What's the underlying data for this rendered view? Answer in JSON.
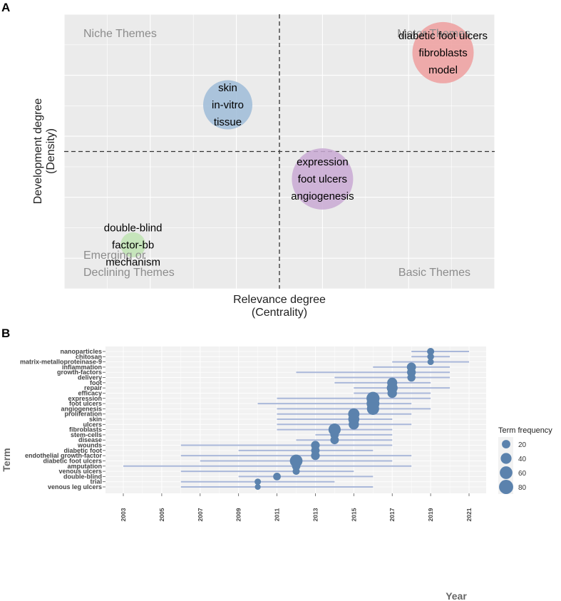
{
  "chart_data": [
    {
      "type": "scatter",
      "panel_label": "A",
      "xlabel": [
        "Relevance degree",
        "(Centrality)"
      ],
      "ylabel": [
        "Development degree",
        "(Density)"
      ],
      "quadrants": {
        "top_left": "Niche Themes",
        "top_right": "Motor Themes",
        "bottom_left": [
          "Emerging or",
          "Declining Themes"
        ],
        "bottom_right": "Basic Themes"
      },
      "xlim": [
        0,
        100
      ],
      "ylim": [
        0,
        100
      ],
      "divider": {
        "x": 50,
        "y": 50
      },
      "clusters": [
        {
          "name": "skin",
          "terms": [
            "skin",
            "in-vitro",
            "tissue"
          ],
          "x": 38,
          "y": 67,
          "size": 3,
          "color": "#9fbcd8"
        },
        {
          "name": "diabetic foot ulcers",
          "terms": [
            "diabetic foot ulcers",
            "fibroblasts",
            "model"
          ],
          "x": 88,
          "y": 86,
          "size": 4,
          "color": "#ef9f9f"
        },
        {
          "name": "expression",
          "terms": [
            "expression",
            "foot ulcers",
            "angiogenesis"
          ],
          "x": 60,
          "y": 40,
          "size": 4,
          "color": "#c9a9d3"
        },
        {
          "name": "double-blind",
          "terms": [
            "double-blind",
            "factor-bb",
            "mechanism"
          ],
          "x": 16,
          "y": 16,
          "size": 1,
          "color": "#bfe4b3"
        }
      ]
    },
    {
      "type": "scatter",
      "panel_label": "B",
      "title": "",
      "xlabel": "Year",
      "ylabel": "Term",
      "xlim": [
        2003,
        2021
      ],
      "x_ticks": [
        "2003",
        "2005",
        "2007",
        "2009",
        "2011",
        "2013",
        "2015",
        "2017",
        "2019",
        "2021"
      ],
      "legend": {
        "title": "Term frequency",
        "items": [
          "20",
          "40",
          "60",
          "80"
        ],
        "values": [
          20,
          40,
          60,
          80
        ]
      },
      "color": "#5b82ad",
      "range_color": "#aab8da",
      "terms": [
        {
          "term": "nanoparticles",
          "start": 2018,
          "end": 2021,
          "year": 2019,
          "freq": 12
        },
        {
          "term": "chitosan",
          "start": 2018,
          "end": 2020,
          "year": 2019,
          "freq": 10
        },
        {
          "term": "matrix-metalloproteinase-9",
          "start": 2017,
          "end": 2021,
          "year": 2019,
          "freq": 8
        },
        {
          "term": "inflammation",
          "start": 2016,
          "end": 2020,
          "year": 2018,
          "freq": 25
        },
        {
          "term": "growth-factors",
          "start": 2012,
          "end": 2020,
          "year": 2018,
          "freq": 22
        },
        {
          "term": "delivery",
          "start": 2014,
          "end": 2020,
          "year": 2018,
          "freq": 18
        },
        {
          "term": "foot",
          "start": 2014,
          "end": 2019,
          "year": 2017,
          "freq": 33
        },
        {
          "term": "repair",
          "start": 2015,
          "end": 2020,
          "year": 2017,
          "freq": 40
        },
        {
          "term": "efficacy",
          "start": 2015,
          "end": 2019,
          "year": 2017,
          "freq": 28
        },
        {
          "term": "expression",
          "start": 2011,
          "end": 2019,
          "year": 2016,
          "freq": 65
        },
        {
          "term": "foot ulcers",
          "start": 2010,
          "end": 2018,
          "year": 2016,
          "freq": 62
        },
        {
          "term": "angiogenesis",
          "start": 2011,
          "end": 2019,
          "year": 2016,
          "freq": 55
        },
        {
          "term": "proliferation",
          "start": 2011,
          "end": 2018,
          "year": 2015,
          "freq": 45
        },
        {
          "term": "skin",
          "start": 2011,
          "end": 2017,
          "year": 2015,
          "freq": 42
        },
        {
          "term": "ulcers",
          "start": 2011,
          "end": 2018,
          "year": 2015,
          "freq": 35
        },
        {
          "term": "fibroblasts",
          "start": 2011,
          "end": 2017,
          "year": 2014,
          "freq": 55
        },
        {
          "term": "stem-cells",
          "start": 2013,
          "end": 2017,
          "year": 2014,
          "freq": 20
        },
        {
          "term": "disease",
          "start": 2012,
          "end": 2017,
          "year": 2014,
          "freq": 20
        },
        {
          "term": "wounds",
          "start": 2006,
          "end": 2017,
          "year": 2013,
          "freq": 22
        },
        {
          "term": "diabetic foot",
          "start": 2009,
          "end": 2016,
          "year": 2013,
          "freq": 20
        },
        {
          "term": "endothelial growth-factor",
          "start": 2006,
          "end": 2018,
          "year": 2013,
          "freq": 22
        },
        {
          "term": "diabetic foot ulcers",
          "start": 2007,
          "end": 2017,
          "year": 2012,
          "freq": 60
        },
        {
          "term": "amputation",
          "start": 2003,
          "end": 2018,
          "year": 2012,
          "freq": 20
        },
        {
          "term": "venous ulcers",
          "start": 2006,
          "end": 2015,
          "year": 2012,
          "freq": 12
        },
        {
          "term": "double-blind",
          "start": 2009,
          "end": 2016,
          "year": 2011,
          "freq": 15
        },
        {
          "term": "trial",
          "start": 2006,
          "end": 2014,
          "year": 2010,
          "freq": 8
        },
        {
          "term": "venous leg ulcers",
          "start": 2006,
          "end": 2016,
          "year": 2010,
          "freq": 6
        }
      ]
    }
  ]
}
